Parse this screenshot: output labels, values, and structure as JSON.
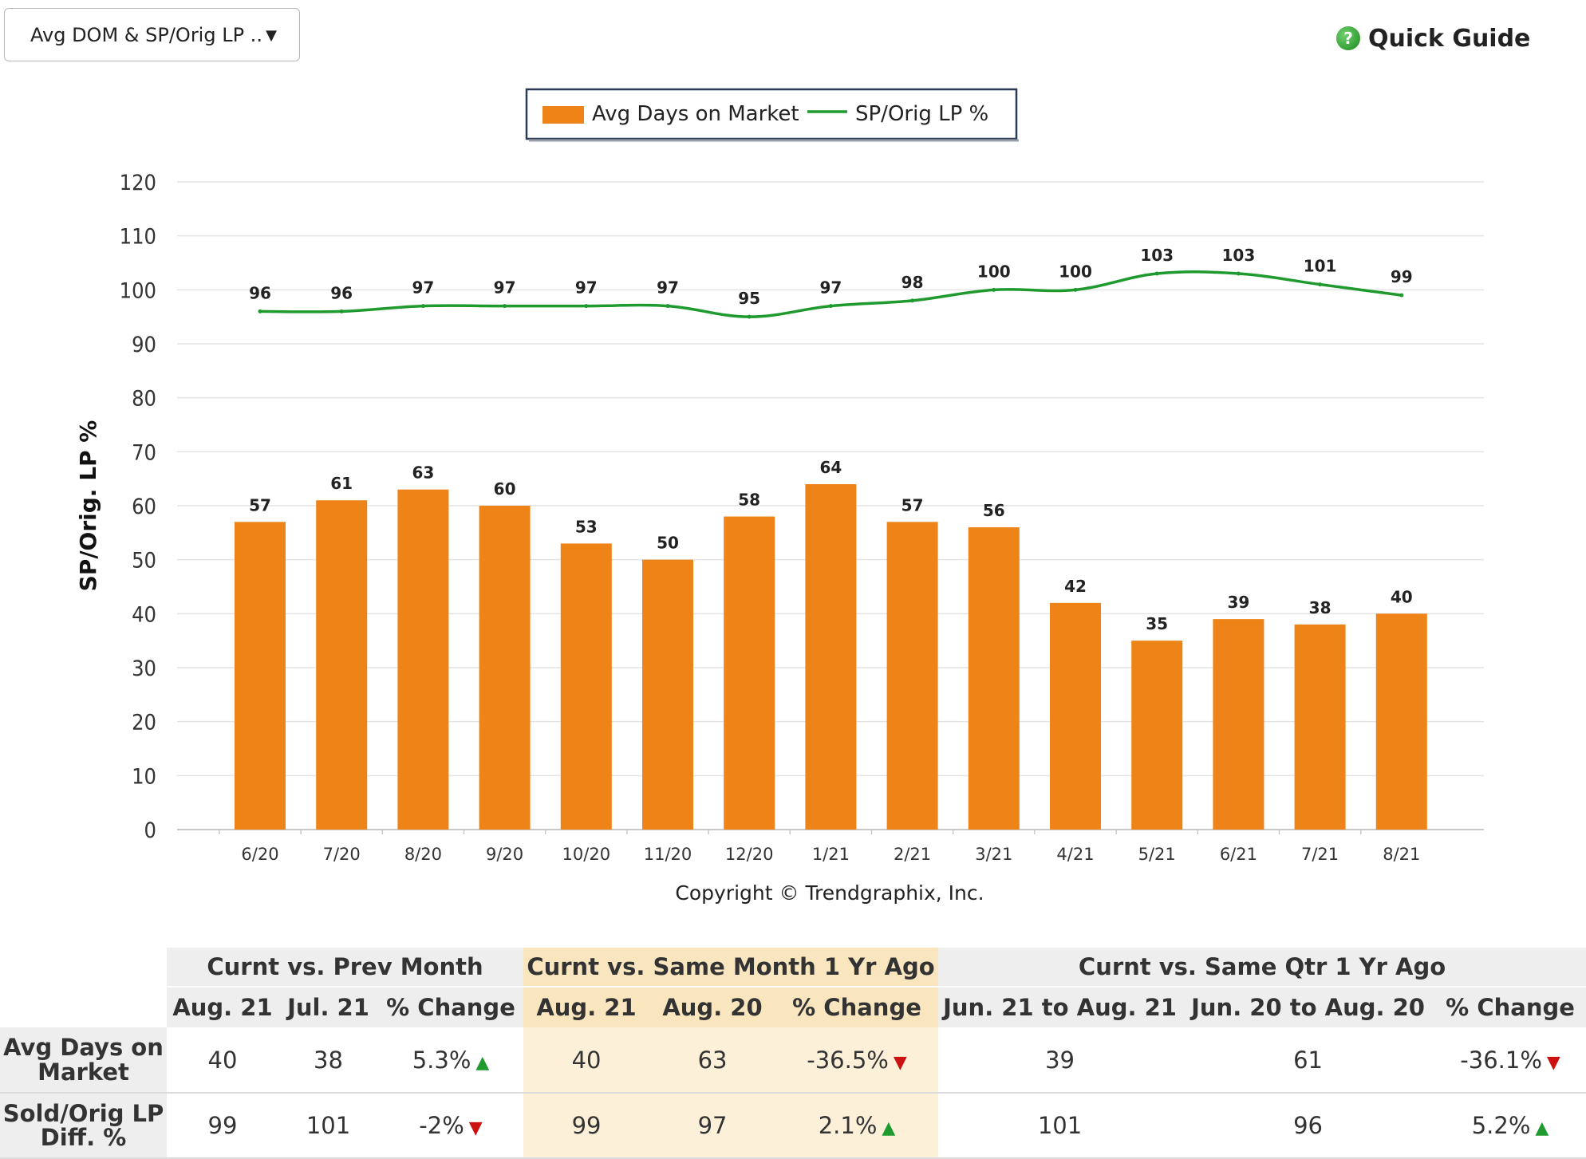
{
  "selector": {
    "label": "Avg DOM & SP/Orig LP ..",
    "arrow_icon": "triangle-down-icon"
  },
  "quick_guide": {
    "label": "Quick Guide",
    "icon": "help-circle-icon",
    "icon_glyph": "?"
  },
  "chart_data": {
    "type": "bar",
    "categories": [
      "6/20",
      "7/20",
      "8/20",
      "9/20",
      "10/20",
      "11/20",
      "12/20",
      "1/21",
      "2/21",
      "3/21",
      "4/21",
      "5/21",
      "6/21",
      "7/21",
      "8/21"
    ],
    "series": [
      {
        "name": "Avg Days on Market",
        "type": "bar",
        "color": "#ee8418",
        "values": [
          57,
          61,
          63,
          60,
          53,
          50,
          58,
          64,
          57,
          56,
          42,
          35,
          39,
          38,
          40
        ]
      },
      {
        "name": "SP/Orig LP %",
        "type": "line",
        "color": "#1e9a2e",
        "values": [
          96,
          96,
          97,
          97,
          97,
          97,
          95,
          97,
          98,
          100,
          100,
          103,
          103,
          101,
          99
        ]
      }
    ],
    "ylabel": "SP/Orig. LP %",
    "ylim": [
      0,
      120
    ],
    "yticks": [
      0,
      10,
      20,
      30,
      40,
      50,
      60,
      70,
      80,
      90,
      100,
      110,
      120
    ],
    "grid": true,
    "legend_position": "top-center",
    "footer": "Copyright © Trendgraphix, Inc."
  },
  "table": {
    "groups": [
      "Curnt vs. Prev Month",
      "Curnt vs. Same Month 1 Yr Ago",
      "Curnt vs. Same Qtr 1 Yr Ago"
    ],
    "columns": [
      "Aug. 21",
      "Jul. 21",
      "% Change",
      "Aug. 21",
      "Aug. 20",
      "% Change",
      "Jun. 21 to Aug. 21",
      "Jun. 20 to Aug. 20",
      "% Change"
    ],
    "rows": [
      {
        "label_line1": "Avg Days on",
        "label_line2": "Market",
        "cells": [
          "40",
          "38",
          "5.3%",
          "40",
          "63",
          "-36.5%",
          "39",
          "61",
          "-36.1%"
        ],
        "trends": [
          "",
          "",
          "up",
          "",
          "",
          "down",
          "",
          "",
          "down"
        ]
      },
      {
        "label_line1": "Sold/Orig LP",
        "label_line2": "Diff. %",
        "cells": [
          "99",
          "101",
          "-2%",
          "99",
          "97",
          "2.1%",
          "101",
          "96",
          "5.2%"
        ],
        "trends": [
          "",
          "",
          "down",
          "",
          "",
          "up",
          "",
          "",
          "up"
        ]
      }
    ]
  }
}
